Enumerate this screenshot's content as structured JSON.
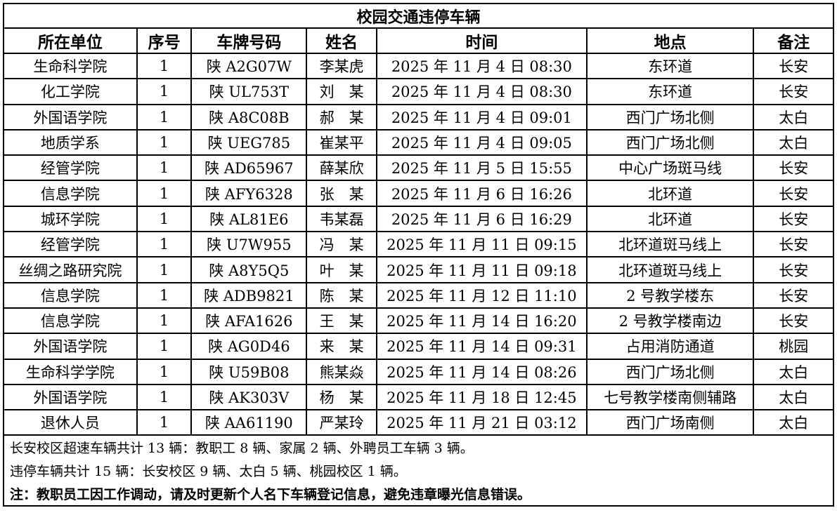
{
  "title": "校园交通违停车辆",
  "headers": [
    "所在单位",
    "序号",
    "车牌号码",
    "姓名",
    "时间",
    "地点",
    "备注"
  ],
  "rows": [
    [
      "生命科学院",
      "1",
      "陕 A2G07W",
      "李某虎",
      "2025 年 11 月 4 日 08:30",
      "东环道",
      "长安"
    ],
    [
      "化工学院",
      "1",
      "陕 UL753T",
      "刘　某",
      "2025 年 11 月 4 日 08:30",
      "东环道",
      "长安"
    ],
    [
      "外国语学院",
      "1",
      "陕 A8C08B",
      "郝　某",
      "2025 年 11 月 4 日 09:01",
      "西门广场北侧",
      "太白"
    ],
    [
      "地质学系",
      "1",
      "陕 UEG785",
      "崔某平",
      "2025 年 11 月 4 日 09:05",
      "西门广场北侧",
      "太白"
    ],
    [
      "经管学院",
      "1",
      "陕 AD65967",
      "薛某欣",
      "2025 年 11 月 5 日 15:55",
      "中心广场斑马线",
      "长安"
    ],
    [
      "信息学院",
      "1",
      "陕 AFY6328",
      "张　某",
      "2025 年 11 月 6 日 16:26",
      "北环道",
      "长安"
    ],
    [
      "城环学院",
      "1",
      "陕 AL81E6",
      "韦某磊",
      "2025 年 11 月 6 日 16:29",
      "北环道",
      "长安"
    ],
    [
      "经管学院",
      "1",
      "陕 U7W955",
      "冯　某",
      "2025 年 11 月 11 日 09:15",
      "北环道斑马线上",
      "长安"
    ],
    [
      "丝绸之路研究院",
      "1",
      "陕 A8Y5Q5",
      "叶　某",
      "2025 年 11 月 11 日 09:18",
      "北环道斑马线上",
      "长安"
    ],
    [
      "信息学院",
      "1",
      "陕 ADB9821",
      "陈　某",
      "2025 年 11 月 12 日 11:10",
      "2 号教学楼东",
      "长安"
    ],
    [
      "信息学院",
      "1",
      "陕 AFA1626",
      "王　某",
      "2025 年 11 月 14 日 16:20",
      "2 号教学楼南边",
      "长安"
    ],
    [
      "外国语学院",
      "1",
      "陕 AG0D46",
      "来　某",
      "2025 年 11 月 14 日 09:31",
      "占用消防通道",
      "桃园"
    ],
    [
      "生命科学学院",
      "1",
      "陕 U59B08",
      "熊某焱",
      "2025 年 11 月 14 日 08:26",
      "西门广场北侧",
      "太白"
    ],
    [
      "外国语学院",
      "1",
      "陕 AK303V",
      "杨　某",
      "2025 年 11 月 18 日 12:45",
      "七号教学楼南侧辅路",
      "太白"
    ],
    [
      "退休人员",
      "1",
      "陕 AA61190",
      "严某玲",
      "2025 年 11 月 21 日 03:12",
      "西门广场南侧",
      "太白"
    ]
  ],
  "notes": [
    "长安校区超速车辆共计 13 辆：教职工 8 辆、家属 2 辆、外聘员工车辆 3 辆。",
    "违停车辆共计 15 辆：长安校区 9 辆、太白 5 辆、桃园校区 1 辆。",
    "注：教职员工因工作调动，请及时更新个人名下车辆登记信息，避免违章曝光信息错误。"
  ]
}
